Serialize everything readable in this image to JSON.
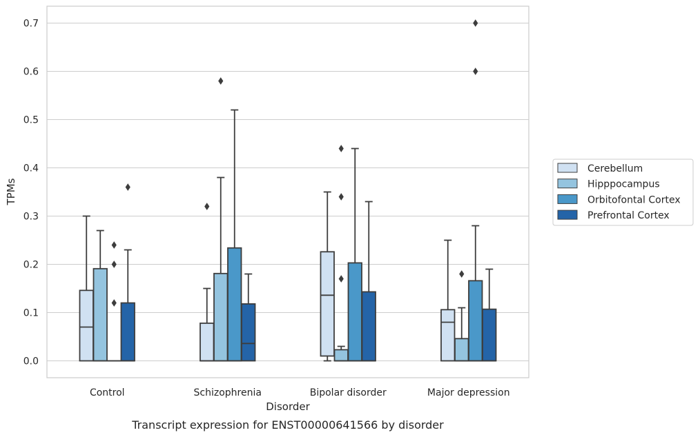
{
  "caption": "Transcript expression for ENST00000641566 by disorder",
  "chart_data": {
    "type": "box",
    "xlabel": "Disorder",
    "ylabel": "TPMs",
    "ylim": [
      -0.035,
      0.735
    ],
    "yticks": [
      "0.0",
      "0.1",
      "0.2",
      "0.3",
      "0.4",
      "0.5",
      "0.6",
      "0.7"
    ],
    "grid": true,
    "legend_placement": "right",
    "categories": [
      "Control",
      "Schizophrenia",
      "Bipolar disorder",
      "Major depression"
    ],
    "series": [
      {
        "name": "Cerebellum",
        "color": "#d0e1f2",
        "boxes": [
          {
            "q1": 0.0,
            "median": 0.07,
            "q3": 0.146,
            "whisker_low": 0.0,
            "whisker_high": 0.3,
            "outliers": []
          },
          {
            "q1": 0.0,
            "median": 0.0,
            "q3": 0.078,
            "whisker_low": 0.0,
            "whisker_high": 0.15,
            "outliers": [
              0.32
            ]
          },
          {
            "q1": 0.01,
            "median": 0.136,
            "q3": 0.226,
            "whisker_low": 0.0,
            "whisker_high": 0.35,
            "outliers": []
          },
          {
            "q1": 0.0,
            "median": 0.08,
            "q3": 0.106,
            "whisker_low": 0.0,
            "whisker_high": 0.25,
            "outliers": []
          }
        ]
      },
      {
        "name": "Hipppocampus",
        "color": "#94c4df",
        "boxes": [
          {
            "q1": 0.0,
            "median": 0.0,
            "q3": 0.191,
            "whisker_low": 0.0,
            "whisker_high": 0.27,
            "outliers": []
          },
          {
            "q1": 0.0,
            "median": 0.0,
            "q3": 0.181,
            "whisker_low": 0.0,
            "whisker_high": 0.38,
            "outliers": [
              0.58
            ]
          },
          {
            "q1": 0.0,
            "median": 0.0,
            "q3": 0.023,
            "whisker_low": 0.0,
            "whisker_high": 0.03,
            "outliers": [
              0.17,
              0.34,
              0.44
            ]
          },
          {
            "q1": 0.0,
            "median": 0.0,
            "q3": 0.046,
            "whisker_low": 0.0,
            "whisker_high": 0.11,
            "outliers": [
              0.18
            ]
          }
        ]
      },
      {
        "name": "Orbitofontal Cortex",
        "color": "#4a98c9",
        "boxes": [
          {
            "q1": 0.0,
            "median": 0.0,
            "q3": 0.0,
            "whisker_low": 0.0,
            "whisker_high": 0.0,
            "outliers": [
              0.12,
              0.2,
              0.24
            ]
          },
          {
            "q1": 0.0,
            "median": 0.0,
            "q3": 0.234,
            "whisker_low": 0.0,
            "whisker_high": 0.52,
            "outliers": []
          },
          {
            "q1": 0.0,
            "median": 0.0,
            "q3": 0.203,
            "whisker_low": 0.0,
            "whisker_high": 0.44,
            "outliers": []
          },
          {
            "q1": 0.0,
            "median": 0.0,
            "q3": 0.166,
            "whisker_low": 0.0,
            "whisker_high": 0.28,
            "outliers": [
              0.6,
              0.7
            ]
          }
        ]
      },
      {
        "name": "Prefrontal Cortex",
        "color": "#2464a8",
        "boxes": [
          {
            "q1": 0.0,
            "median": 0.0,
            "q3": 0.12,
            "whisker_low": 0.0,
            "whisker_high": 0.23,
            "outliers": [
              0.36
            ]
          },
          {
            "q1": 0.0,
            "median": 0.036,
            "q3": 0.118,
            "whisker_low": 0.0,
            "whisker_high": 0.18,
            "outliers": []
          },
          {
            "q1": 0.0,
            "median": 0.0,
            "q3": 0.143,
            "whisker_low": 0.0,
            "whisker_high": 0.33,
            "outliers": []
          },
          {
            "q1": 0.0,
            "median": 0.0,
            "q3": 0.107,
            "whisker_low": 0.0,
            "whisker_high": 0.19,
            "outliers": []
          }
        ]
      }
    ]
  }
}
